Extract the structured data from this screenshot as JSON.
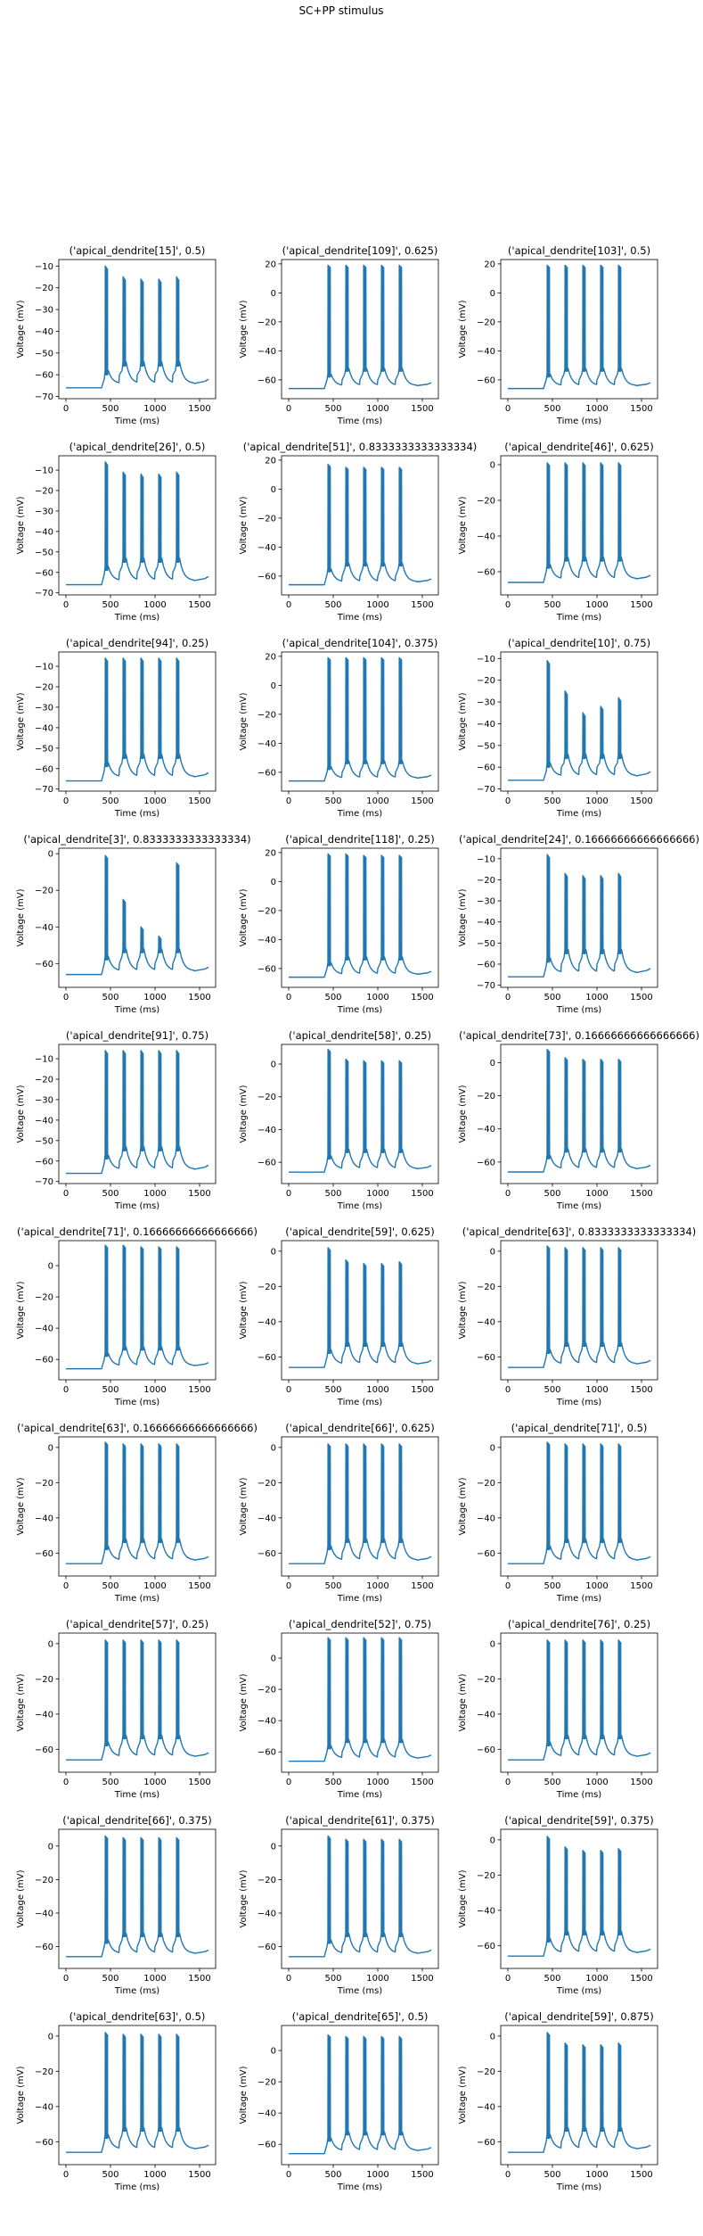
{
  "figure": {
    "suptitle": "SC+PP stimulus",
    "line_color": "#1f77b4"
  },
  "chart_data": [
    {
      "type": "line",
      "title": "('apical_dendrite[15]', 0.5)",
      "xlabel": "Time (ms)",
      "ylabel": "Voltage (mV)",
      "xlim": [
        -80,
        1680
      ],
      "xticks": [
        0,
        500,
        1000,
        1500
      ],
      "ylim": [
        -71,
        -7
      ],
      "yticks": [
        -70,
        -60,
        -50,
        -40,
        -30,
        -20,
        -10
      ],
      "baseline": -66,
      "epsp_peaks": [
        -58,
        -54,
        -54,
        -54,
        -54
      ],
      "spike_peaks": [
        -10,
        -15,
        -16,
        -16,
        -15
      ],
      "grid": false
    },
    {
      "type": "line",
      "title": "('apical_dendrite[109]', 0.625)",
      "xlabel": "Time (ms)",
      "ylabel": "Voltage (mV)",
      "xlim": [
        -80,
        1680
      ],
      "xticks": [
        0,
        500,
        1000,
        1500
      ],
      "ylim": [
        -73,
        23
      ],
      "yticks": [
        -60,
        -40,
        -20,
        0,
        20
      ],
      "baseline": -66,
      "epsp_peaks": [
        -56,
        -52,
        -52,
        -52,
        -52
      ],
      "spike_peaks": [
        19,
        19,
        19,
        19,
        19
      ],
      "grid": false
    },
    {
      "type": "line",
      "title": "('apical_dendrite[103]', 0.5)",
      "xlabel": "Time (ms)",
      "ylabel": "Voltage (mV)",
      "xlim": [
        -80,
        1680
      ],
      "xticks": [
        0,
        500,
        1000,
        1500
      ],
      "ylim": [
        -73,
        23
      ],
      "yticks": [
        -60,
        -40,
        -20,
        0,
        20
      ],
      "baseline": -66,
      "epsp_peaks": [
        -56,
        -52,
        -52,
        -52,
        -52
      ],
      "spike_peaks": [
        19,
        19,
        19,
        19,
        19
      ],
      "grid": false
    },
    {
      "type": "line",
      "title": "('apical_dendrite[26]', 0.5)",
      "xlabel": "Time (ms)",
      "ylabel": "Voltage (mV)",
      "xlim": [
        -80,
        1680
      ],
      "xticks": [
        0,
        500,
        1000,
        1500
      ],
      "ylim": [
        -71,
        -3
      ],
      "yticks": [
        -70,
        -60,
        -50,
        -40,
        -30,
        -20,
        -10
      ],
      "baseline": -66,
      "epsp_peaks": [
        -57,
        -53,
        -53,
        -53,
        -53
      ],
      "spike_peaks": [
        -6,
        -11,
        -12,
        -12,
        -11
      ],
      "grid": false
    },
    {
      "type": "line",
      "title": "('apical_dendrite[51]', 0.8333333333333334)",
      "xlabel": "Time (ms)",
      "ylabel": "Voltage (mV)",
      "xlim": [
        -80,
        1680
      ],
      "xticks": [
        0,
        500,
        1000,
        1500
      ],
      "ylim": [
        -73,
        23
      ],
      "yticks": [
        -60,
        -40,
        -20,
        0,
        20
      ],
      "baseline": -66,
      "epsp_peaks": [
        -55,
        -51,
        -51,
        -51,
        -51
      ],
      "spike_peaks": [
        17,
        15,
        15,
        15,
        15
      ],
      "grid": false
    },
    {
      "type": "line",
      "title": "('apical_dendrite[46]', 0.625)",
      "xlabel": "Time (ms)",
      "ylabel": "Voltage (mV)",
      "xlim": [
        -80,
        1680
      ],
      "xticks": [
        0,
        500,
        1000,
        1500
      ],
      "ylim": [
        -73,
        5
      ],
      "yticks": [
        -60,
        -40,
        -20,
        0
      ],
      "baseline": -66,
      "epsp_peaks": [
        -56,
        -52,
        -52,
        -52,
        -52
      ],
      "spike_peaks": [
        1,
        1,
        1,
        1,
        1
      ],
      "grid": false
    },
    {
      "type": "line",
      "title": "('apical_dendrite[94]', 0.25)",
      "xlabel": "Time (ms)",
      "ylabel": "Voltage (mV)",
      "xlim": [
        -80,
        1680
      ],
      "xticks": [
        0,
        500,
        1000,
        1500
      ],
      "ylim": [
        -71,
        -3
      ],
      "yticks": [
        -70,
        -60,
        -50,
        -40,
        -30,
        -20,
        -10
      ],
      "baseline": -66,
      "epsp_peaks": [
        -57,
        -53,
        -53,
        -53,
        -53
      ],
      "spike_peaks": [
        -6,
        -6,
        -6,
        -6,
        -6
      ],
      "grid": false
    },
    {
      "type": "line",
      "title": "('apical_dendrite[104]', 0.375)",
      "xlabel": "Time (ms)",
      "ylabel": "Voltage (mV)",
      "xlim": [
        -80,
        1680
      ],
      "xticks": [
        0,
        500,
        1000,
        1500
      ],
      "ylim": [
        -73,
        23
      ],
      "yticks": [
        -60,
        -40,
        -20,
        0,
        20
      ],
      "baseline": -66,
      "epsp_peaks": [
        -56,
        -52,
        -52,
        -52,
        -52
      ],
      "spike_peaks": [
        19,
        19,
        19,
        19,
        19
      ],
      "grid": false
    },
    {
      "type": "line",
      "title": "('apical_dendrite[10]', 0.75)",
      "xlabel": "Time (ms)",
      "ylabel": "Voltage (mV)",
      "xlim": [
        -80,
        1680
      ],
      "xticks": [
        0,
        500,
        1000,
        1500
      ],
      "ylim": [
        -71,
        -7
      ],
      "yticks": [
        -70,
        -60,
        -50,
        -40,
        -30,
        -20,
        -10
      ],
      "baseline": -66,
      "epsp_peaks": [
        -58,
        -54,
        -54,
        -54,
        -54
      ],
      "spike_peaks": [
        -11,
        -25,
        -35,
        -32,
        -28
      ],
      "grid": false
    },
    {
      "type": "line",
      "title": "('apical_dendrite[3]', 0.8333333333333334)",
      "xlabel": "Time (ms)",
      "ylabel": "Voltage (mV)",
      "xlim": [
        -80,
        1680
      ],
      "xticks": [
        0,
        500,
        1000,
        1500
      ],
      "ylim": [
        -73,
        3
      ],
      "yticks": [
        -60,
        -40,
        -20,
        0
      ],
      "baseline": -66,
      "epsp_peaks": [
        -56,
        -52,
        -52,
        -52,
        -52
      ],
      "spike_peaks": [
        -1,
        -25,
        -40,
        -45,
        -5
      ],
      "grid": false
    },
    {
      "type": "line",
      "title": "('apical_dendrite[118]', 0.25)",
      "xlabel": "Time (ms)",
      "ylabel": "Voltage (mV)",
      "xlim": [
        -80,
        1680
      ],
      "xticks": [
        0,
        500,
        1000,
        1500
      ],
      "ylim": [
        -73,
        23
      ],
      "yticks": [
        -60,
        -40,
        -20,
        0,
        20
      ],
      "baseline": -66,
      "epsp_peaks": [
        -56,
        -52,
        -52,
        -52,
        -52
      ],
      "spike_peaks": [
        19,
        19,
        18,
        18,
        18
      ],
      "grid": false
    },
    {
      "type": "line",
      "title": "('apical_dendrite[24]', 0.16666666666666666)",
      "xlabel": "Time (ms)",
      "ylabel": "Voltage (mV)",
      "xlim": [
        -80,
        1680
      ],
      "xticks": [
        0,
        500,
        1000,
        1500
      ],
      "ylim": [
        -71,
        -5
      ],
      "yticks": [
        -70,
        -60,
        -50,
        -40,
        -30,
        -20,
        -10
      ],
      "baseline": -66,
      "epsp_peaks": [
        -57,
        -53,
        -53,
        -53,
        -53
      ],
      "spike_peaks": [
        -8,
        -17,
        -18,
        -18,
        -17
      ],
      "grid": false
    },
    {
      "type": "line",
      "title": "('apical_dendrite[91]', 0.75)",
      "xlabel": "Time (ms)",
      "ylabel": "Voltage (mV)",
      "xlim": [
        -80,
        1680
      ],
      "xticks": [
        0,
        500,
        1000,
        1500
      ],
      "ylim": [
        -71,
        -3
      ],
      "yticks": [
        -70,
        -60,
        -50,
        -40,
        -30,
        -20,
        -10
      ],
      "baseline": -66,
      "epsp_peaks": [
        -57,
        -53,
        -53,
        -53,
        -53
      ],
      "spike_peaks": [
        -6,
        -6,
        -6,
        -6,
        -6
      ],
      "grid": false
    },
    {
      "type": "line",
      "title": "('apical_dendrite[58]', 0.25)",
      "xlabel": "Time (ms)",
      "ylabel": "Voltage (mV)",
      "xlim": [
        -80,
        1680
      ],
      "xticks": [
        0,
        500,
        1000,
        1500
      ],
      "ylim": [
        -73,
        12
      ],
      "yticks": [
        -60,
        -40,
        -20,
        0
      ],
      "baseline": -66,
      "epsp_peaks": [
        -56,
        -52,
        -52,
        -52,
        -52
      ],
      "spike_peaks": [
        9,
        3,
        2,
        2,
        2
      ],
      "grid": false
    },
    {
      "type": "line",
      "title": "('apical_dendrite[73]', 0.16666666666666666)",
      "xlabel": "Time (ms)",
      "ylabel": "Voltage (mV)",
      "xlim": [
        -80,
        1680
      ],
      "xticks": [
        0,
        500,
        1000,
        1500
      ],
      "ylim": [
        -73,
        11
      ],
      "yticks": [
        -60,
        -40,
        -20,
        0
      ],
      "baseline": -66,
      "epsp_peaks": [
        -56,
        -52,
        -52,
        -52,
        -52
      ],
      "spike_peaks": [
        8,
        3,
        2,
        2,
        2
      ],
      "grid": false
    },
    {
      "type": "line",
      "title": "('apical_dendrite[71]', 0.16666666666666666)",
      "xlabel": "Time (ms)",
      "ylabel": "Voltage (mV)",
      "xlim": [
        -80,
        1680
      ],
      "xticks": [
        0,
        500,
        1000,
        1500
      ],
      "ylim": [
        -73,
        16
      ],
      "yticks": [
        -60,
        -40,
        -20,
        0
      ],
      "baseline": -66,
      "epsp_peaks": [
        -56,
        -52,
        -52,
        -52,
        -52
      ],
      "spike_peaks": [
        13,
        13,
        12,
        12,
        12
      ],
      "grid": false
    },
    {
      "type": "line",
      "title": "('apical_dendrite[59]', 0.625)",
      "xlabel": "Time (ms)",
      "ylabel": "Voltage (mV)",
      "xlim": [
        -80,
        1680
      ],
      "xticks": [
        0,
        500,
        1000,
        1500
      ],
      "ylim": [
        -73,
        6
      ],
      "yticks": [
        -60,
        -40,
        -20,
        0
      ],
      "baseline": -66,
      "epsp_peaks": [
        -56,
        -52,
        -52,
        -52,
        -52
      ],
      "spike_peaks": [
        2,
        -5,
        -7,
        -7,
        -6
      ],
      "grid": false
    },
    {
      "type": "line",
      "title": "('apical_dendrite[63]', 0.8333333333333334)",
      "xlabel": "Time (ms)",
      "ylabel": "Voltage (mV)",
      "xlim": [
        -80,
        1680
      ],
      "xticks": [
        0,
        500,
        1000,
        1500
      ],
      "ylim": [
        -73,
        6
      ],
      "yticks": [
        -60,
        -40,
        -20,
        0
      ],
      "baseline": -66,
      "epsp_peaks": [
        -56,
        -52,
        -52,
        -52,
        -52
      ],
      "spike_peaks": [
        3,
        2,
        2,
        2,
        2
      ],
      "grid": false
    },
    {
      "type": "line",
      "title": "('apical_dendrite[63]', 0.16666666666666666)",
      "xlabel": "Time (ms)",
      "ylabel": "Voltage (mV)",
      "xlim": [
        -80,
        1680
      ],
      "xticks": [
        0,
        500,
        1000,
        1500
      ],
      "ylim": [
        -73,
        6
      ],
      "yticks": [
        -60,
        -40,
        -20,
        0
      ],
      "baseline": -66,
      "epsp_peaks": [
        -56,
        -52,
        -52,
        -52,
        -52
      ],
      "spike_peaks": [
        3,
        2,
        2,
        2,
        2
      ],
      "grid": false
    },
    {
      "type": "line",
      "title": "('apical_dendrite[66]', 0.625)",
      "xlabel": "Time (ms)",
      "ylabel": "Voltage (mV)",
      "xlim": [
        -80,
        1680
      ],
      "xticks": [
        0,
        500,
        1000,
        1500
      ],
      "ylim": [
        -73,
        6
      ],
      "yticks": [
        -60,
        -40,
        -20,
        0
      ],
      "baseline": -66,
      "epsp_peaks": [
        -56,
        -52,
        -52,
        -52,
        -52
      ],
      "spike_peaks": [
        2,
        2,
        2,
        2,
        2
      ],
      "grid": false
    },
    {
      "type": "line",
      "title": "('apical_dendrite[71]', 0.5)",
      "xlabel": "Time (ms)",
      "ylabel": "Voltage (mV)",
      "xlim": [
        -80,
        1680
      ],
      "xticks": [
        0,
        500,
        1000,
        1500
      ],
      "ylim": [
        -73,
        6
      ],
      "yticks": [
        -60,
        -40,
        -20,
        0
      ],
      "baseline": -66,
      "epsp_peaks": [
        -56,
        -52,
        -52,
        -52,
        -52
      ],
      "spike_peaks": [
        3,
        2,
        2,
        2,
        2
      ],
      "grid": false
    },
    {
      "type": "line",
      "title": "('apical_dendrite[57]', 0.25)",
      "xlabel": "Time (ms)",
      "ylabel": "Voltage (mV)",
      "xlim": [
        -80,
        1680
      ],
      "xticks": [
        0,
        500,
        1000,
        1500
      ],
      "ylim": [
        -73,
        6
      ],
      "yticks": [
        -60,
        -40,
        -20,
        0
      ],
      "baseline": -66,
      "epsp_peaks": [
        -56,
        -52,
        -52,
        -52,
        -52
      ],
      "spike_peaks": [
        2,
        2,
        2,
        2,
        2
      ],
      "grid": false
    },
    {
      "type": "line",
      "title": "('apical_dendrite[52]', 0.75)",
      "xlabel": "Time (ms)",
      "ylabel": "Voltage (mV)",
      "xlim": [
        -80,
        1680
      ],
      "xticks": [
        0,
        500,
        1000,
        1500
      ],
      "ylim": [
        -73,
        16
      ],
      "yticks": [
        -60,
        -40,
        -20,
        0
      ],
      "baseline": -66,
      "epsp_peaks": [
        -56,
        -52,
        -52,
        -52,
        -52
      ],
      "spike_peaks": [
        13,
        13,
        13,
        13,
        13
      ],
      "grid": false
    },
    {
      "type": "line",
      "title": "('apical_dendrite[76]', 0.25)",
      "xlabel": "Time (ms)",
      "ylabel": "Voltage (mV)",
      "xlim": [
        -80,
        1680
      ],
      "xticks": [
        0,
        500,
        1000,
        1500
      ],
      "ylim": [
        -73,
        6
      ],
      "yticks": [
        -60,
        -40,
        -20,
        0
      ],
      "baseline": -66,
      "epsp_peaks": [
        -56,
        -52,
        -52,
        -52,
        -52
      ],
      "spike_peaks": [
        2,
        2,
        2,
        2,
        2
      ],
      "grid": false
    },
    {
      "type": "line",
      "title": "('apical_dendrite[66]', 0.375)",
      "xlabel": "Time (ms)",
      "ylabel": "Voltage (mV)",
      "xlim": [
        -80,
        1680
      ],
      "xticks": [
        0,
        500,
        1000,
        1500
      ],
      "ylim": [
        -73,
        10
      ],
      "yticks": [
        -60,
        -40,
        -20,
        0
      ],
      "baseline": -66,
      "epsp_peaks": [
        -56,
        -52,
        -52,
        -52,
        -52
      ],
      "spike_peaks": [
        6,
        5,
        5,
        5,
        5
      ],
      "grid": false
    },
    {
      "type": "line",
      "title": "('apical_dendrite[61]', 0.375)",
      "xlabel": "Time (ms)",
      "ylabel": "Voltage (mV)",
      "xlim": [
        -80,
        1680
      ],
      "xticks": [
        0,
        500,
        1000,
        1500
      ],
      "ylim": [
        -73,
        10
      ],
      "yticks": [
        -60,
        -40,
        -20,
        0
      ],
      "baseline": -66,
      "epsp_peaks": [
        -56,
        -52,
        -52,
        -52,
        -52
      ],
      "spike_peaks": [
        6,
        4,
        4,
        4,
        4
      ],
      "grid": false
    },
    {
      "type": "line",
      "title": "('apical_dendrite[59]', 0.375)",
      "xlabel": "Time (ms)",
      "ylabel": "Voltage (mV)",
      "xlim": [
        -80,
        1680
      ],
      "xticks": [
        0,
        500,
        1000,
        1500
      ],
      "ylim": [
        -73,
        6
      ],
      "yticks": [
        -60,
        -40,
        -20,
        0
      ],
      "baseline": -66,
      "epsp_peaks": [
        -56,
        -52,
        -52,
        -52,
        -52
      ],
      "spike_peaks": [
        2,
        -4,
        -6,
        -6,
        -5
      ],
      "grid": false
    },
    {
      "type": "line",
      "title": "('apical_dendrite[63]', 0.5)",
      "xlabel": "Time (ms)",
      "ylabel": "Voltage (mV)",
      "xlim": [
        -80,
        1680
      ],
      "xticks": [
        0,
        500,
        1000,
        1500
      ],
      "ylim": [
        -73,
        6
      ],
      "yticks": [
        -60,
        -40,
        -20,
        0
      ],
      "baseline": -66,
      "epsp_peaks": [
        -56,
        -52,
        -52,
        -52,
        -52
      ],
      "spike_peaks": [
        2,
        1,
        1,
        1,
        1
      ],
      "grid": false
    },
    {
      "type": "line",
      "title": "('apical_dendrite[65]', 0.5)",
      "xlabel": "Time (ms)",
      "ylabel": "Voltage (mV)",
      "xlim": [
        -80,
        1680
      ],
      "xticks": [
        0,
        500,
        1000,
        1500
      ],
      "ylim": [
        -73,
        16
      ],
      "yticks": [
        -60,
        -40,
        -20,
        0
      ],
      "baseline": -66,
      "epsp_peaks": [
        -56,
        -52,
        -52,
        -52,
        -52
      ],
      "spike_peaks": [
        10,
        9,
        9,
        9,
        9
      ],
      "grid": false
    },
    {
      "type": "line",
      "title": "('apical_dendrite[59]', 0.875)",
      "xlabel": "Time (ms)",
      "ylabel": "Voltage (mV)",
      "xlim": [
        -80,
        1680
      ],
      "xticks": [
        0,
        500,
        1000,
        1500
      ],
      "ylim": [
        -73,
        6
      ],
      "yticks": [
        -60,
        -40,
        -20,
        0
      ],
      "baseline": -66,
      "epsp_peaks": [
        -56,
        -52,
        -52,
        -52,
        -52
      ],
      "spike_peaks": [
        2,
        -4,
        -5,
        -5,
        -4
      ],
      "grid": false
    }
  ]
}
